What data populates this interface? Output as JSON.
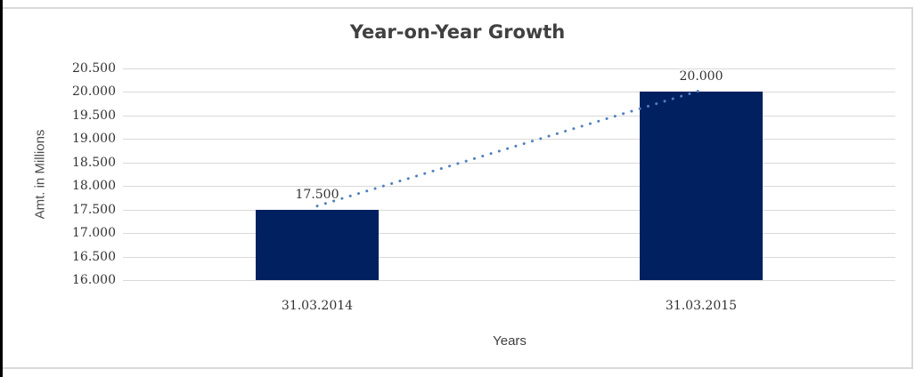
{
  "page": {
    "background": "#ffffff",
    "frame_border_color": "#d9d9d9",
    "left_edge_color": "#000000"
  },
  "chart_data": {
    "type": "bar",
    "title": "Year-on-Year Growth",
    "xlabel": "Years",
    "ylabel": "Amt. in Millions",
    "categories": [
      "31.03.2014",
      "31.03.2015"
    ],
    "values": [
      17.5,
      20.0
    ],
    "value_labels": [
      "17.500",
      "20.000"
    ],
    "ylim": [
      16.0,
      20.5
    ],
    "ytick_step": 0.5,
    "ytick_labels": [
      "16.000",
      "16.500",
      "17.000",
      "17.500",
      "18.000",
      "18.500",
      "19.000",
      "19.500",
      "20.000",
      "20.500"
    ],
    "grid": true,
    "legend": "none",
    "trendline": {
      "style": "dotted",
      "connects": [
        "31.03.2014",
        "31.03.2015"
      ],
      "color": "#4f81bd"
    },
    "colors": {
      "bar": "#002060",
      "gridline": "#d9d9d9",
      "title_text": "#404040",
      "tick_text": "#333333",
      "axis_title_text": "#4d4d4d"
    }
  }
}
